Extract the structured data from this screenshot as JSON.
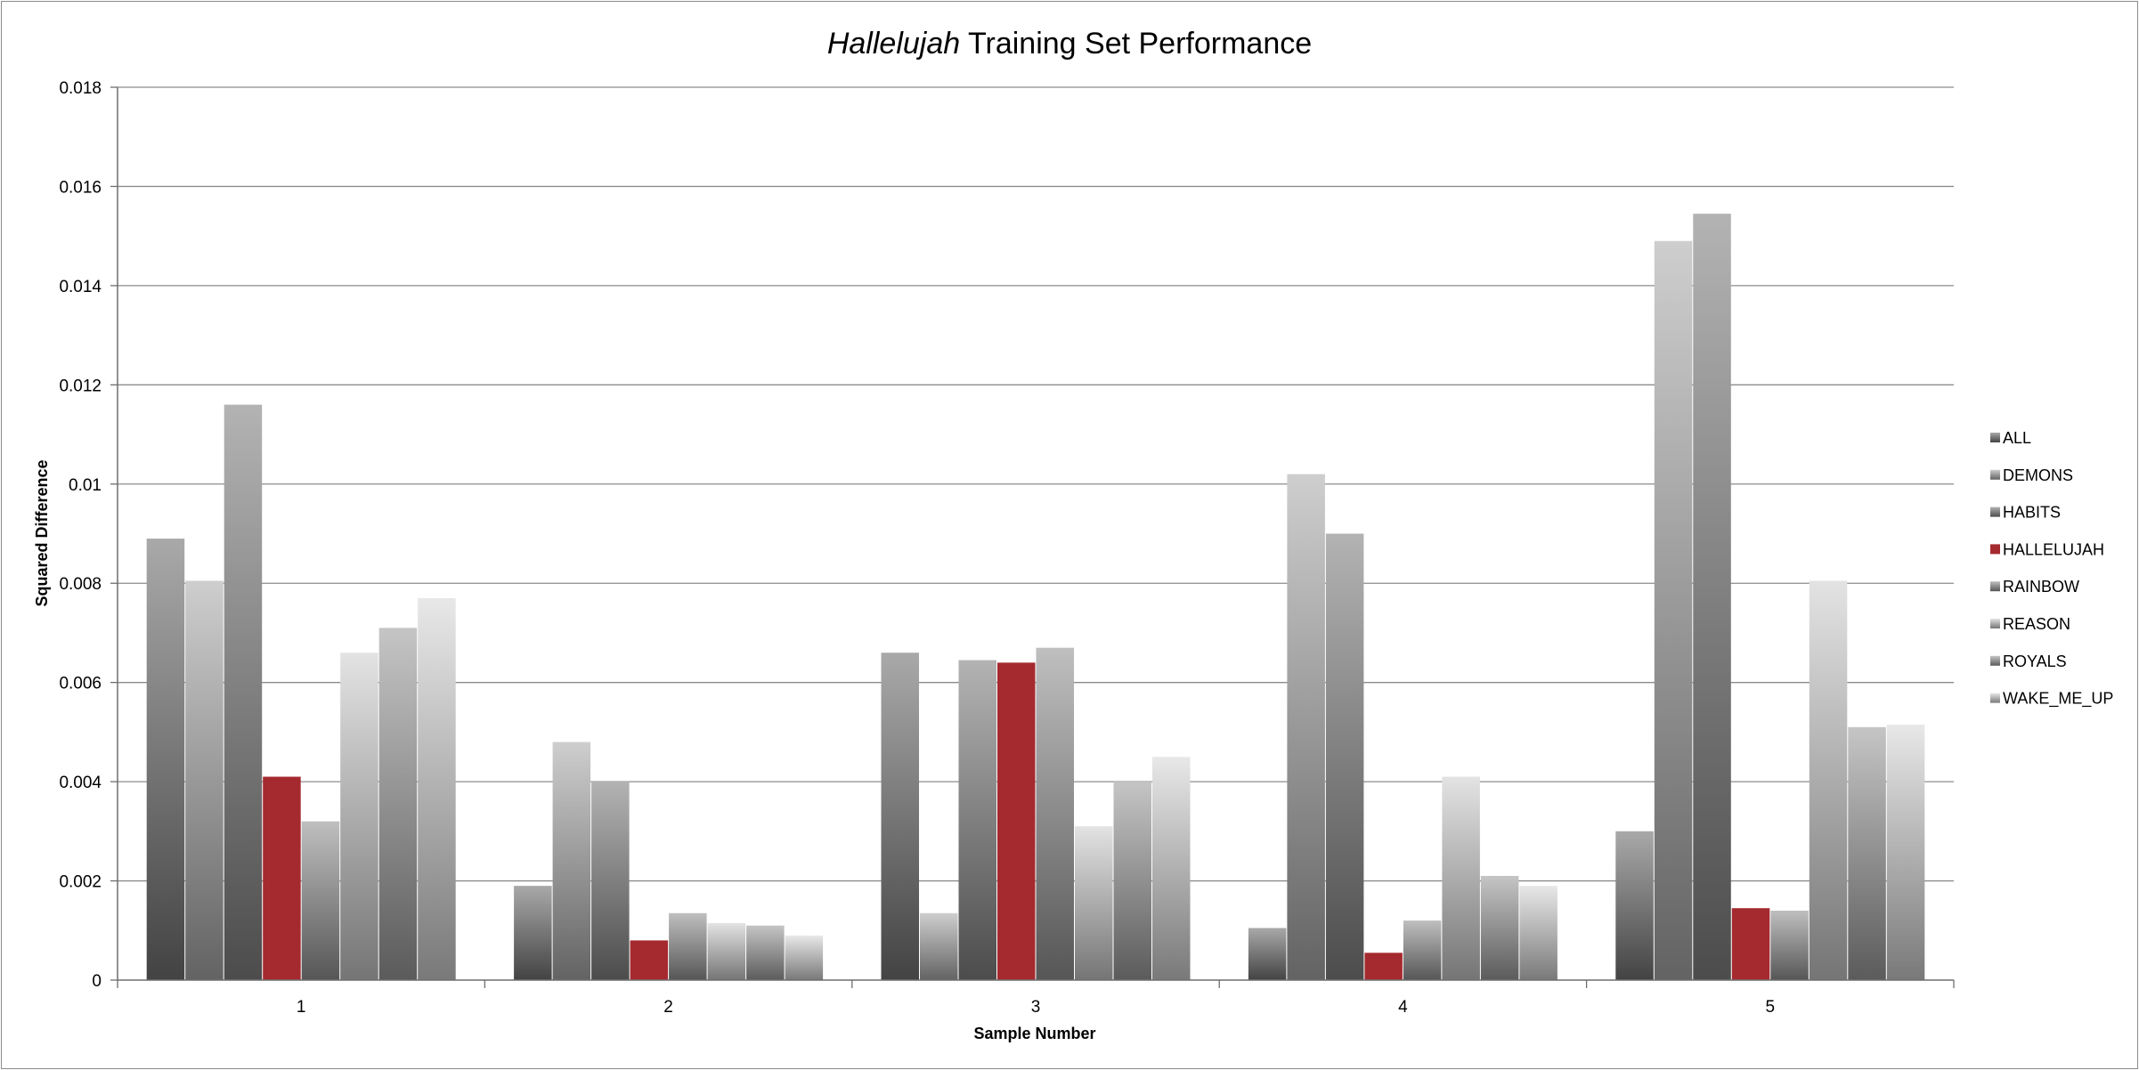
{
  "chart_data": {
    "type": "bar",
    "title_italic": "Hallelujah",
    "title_rest": " Training Set Performance",
    "xlabel": "Sample Number",
    "ylabel": "Squared Difference",
    "categories": [
      "1",
      "2",
      "3",
      "4",
      "5"
    ],
    "ylim": [
      0,
      0.018
    ],
    "yticks": [
      "0",
      "0.002",
      "0.004",
      "0.006",
      "0.008",
      "0.01",
      "0.012",
      "0.014",
      "0.016",
      "0.018"
    ],
    "grid": true,
    "legend_position": "right",
    "series": [
      {
        "name": "ALL",
        "color": "#7a7a7a",
        "values": [
          0.0089,
          0.0019,
          0.0066,
          0.00105,
          0.003
        ]
      },
      {
        "name": "DEMONS",
        "color": "#b4b4b4",
        "values": [
          0.00805,
          0.0048,
          0.00135,
          0.0102,
          0.0149
        ]
      },
      {
        "name": "HABITS",
        "color": "#8a8a8a",
        "values": [
          0.0116,
          0.004,
          0.00645,
          0.009,
          0.01545
        ]
      },
      {
        "name": "HALLELUJAH",
        "color": "#a52a2f",
        "values": [
          0.0041,
          0.0008,
          0.0064,
          0.00055,
          0.00145
        ]
      },
      {
        "name": "RAINBOW",
        "color": "#9c9c9c",
        "values": [
          0.0032,
          0.00135,
          0.0067,
          0.0012,
          0.0014
        ]
      },
      {
        "name": "REASON",
        "color": "#d4d4d4",
        "values": [
          0.0066,
          0.00115,
          0.0031,
          0.0041,
          0.00805
        ]
      },
      {
        "name": "ROYALS",
        "color": "#a6a6a6",
        "values": [
          0.0071,
          0.0011,
          0.004,
          0.0021,
          0.0051
        ]
      },
      {
        "name": "WAKE_ME_UP",
        "color": "#dcdcdc",
        "values": [
          0.0077,
          0.0009,
          0.0045,
          0.0019,
          0.00515
        ]
      }
    ]
  }
}
